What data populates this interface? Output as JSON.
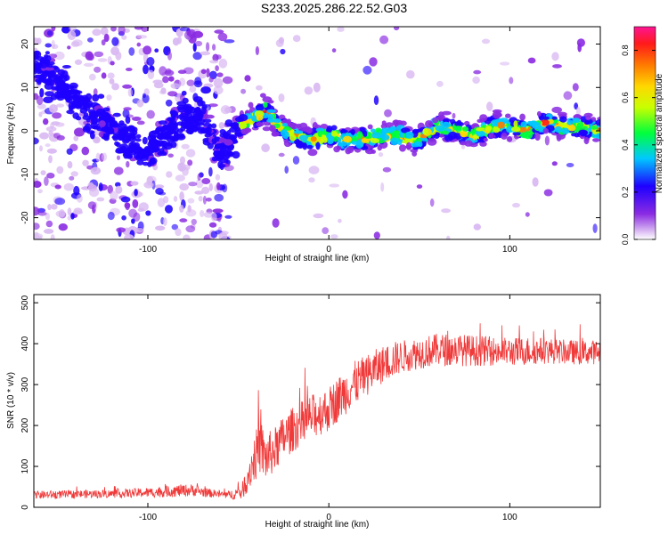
{
  "title": "S233.2025.286.22.52.G03",
  "chart_data": [
    {
      "type": "heatmap",
      "xlabel": "Height of straight line (km)",
      "ylabel": "Frequency (Hz)",
      "xlim": [
        -163,
        150
      ],
      "ylim": [
        -25,
        24
      ],
      "xticks": [
        -100,
        0,
        100
      ],
      "yticks": [
        -20,
        -10,
        0,
        10,
        20
      ],
      "ridge_x": [
        -163,
        -150,
        -140,
        -130,
        -120,
        -110,
        -100,
        -90,
        -80,
        -70,
        -60,
        -50,
        -40,
        -35,
        -30,
        -20,
        -10,
        0,
        10,
        20,
        30,
        40,
        45,
        50,
        60,
        70,
        80,
        90,
        100,
        110,
        120,
        130,
        140,
        150
      ],
      "ridge_freq": [
        16,
        11,
        7,
        4,
        1,
        -3,
        -5,
        0,
        3,
        3,
        -5,
        1,
        3,
        5,
        2,
        -1,
        -2,
        -1,
        -2,
        -2,
        -1,
        -1,
        -2,
        -2,
        1,
        0,
        -1,
        1,
        1,
        0,
        2,
        1,
        1,
        0
      ],
      "colorbar": {
        "label": "Normalized spectral amplitude",
        "ticks": [
          0.0,
          0.2,
          0.4,
          0.6,
          0.8
        ],
        "tick_labels": [
          "0.0",
          "0.2",
          "0.4",
          "0.6",
          "0.8"
        ],
        "range": [
          0,
          0.9
        ]
      }
    },
    {
      "type": "line",
      "xlabel": "Height of straight line (km)",
      "ylabel": "SNR (10 * v/v)",
      "xlim": [
        -163,
        150
      ],
      "ylim": [
        0,
        520
      ],
      "xticks": [
        -100,
        0,
        100
      ],
      "yticks": [
        0,
        100,
        200,
        300,
        400,
        500
      ],
      "color": "#f03a3a",
      "series": [
        {
          "name": "SNR",
          "x": [
            -163,
            -140,
            -120,
            -100,
            -85,
            -75,
            -65,
            -55,
            -48,
            -42,
            -38,
            -35,
            -30,
            -25,
            -20,
            -15,
            -10,
            -5,
            0,
            5,
            10,
            15,
            20,
            25,
            30,
            35,
            40,
            50,
            60,
            70,
            80,
            90,
            100,
            110,
            120,
            130,
            140,
            150
          ],
          "mean": [
            30,
            32,
            33,
            36,
            40,
            42,
            34,
            30,
            38,
            110,
            150,
            120,
            140,
            170,
            190,
            205,
            220,
            230,
            240,
            265,
            285,
            305,
            320,
            335,
            350,
            360,
            368,
            378,
            385,
            385,
            383,
            382,
            380,
            382,
            383,
            380,
            378,
            380
          ],
          "spread": [
            10,
            10,
            10,
            12,
            15,
            15,
            10,
            10,
            20,
            55,
            70,
            60,
            55,
            55,
            55,
            55,
            55,
            55,
            55,
            55,
            55,
            55,
            50,
            50,
            45,
            45,
            40,
            40,
            40,
            40,
            38,
            36,
            35,
            35,
            32,
            30,
            30,
            30
          ]
        }
      ]
    }
  ]
}
